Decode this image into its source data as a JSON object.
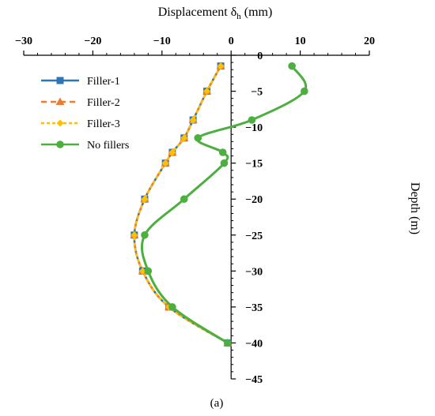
{
  "chart_data": {
    "type": "line",
    "xlabel_main": "Displacement δ",
    "xlabel_sub": "h",
    "xlabel_unit": " (mm)",
    "ylabel": "Depth (m)",
    "caption": "(a)",
    "xlim": [
      -30,
      20
    ],
    "ylim": [
      -45,
      0
    ],
    "xticks": [
      -30,
      -20,
      -10,
      0,
      10,
      20
    ],
    "xtick_labels": [
      "−30",
      "−20",
      "−10",
      "0",
      "10",
      "20"
    ],
    "yticks": [
      0,
      -5,
      -10,
      -15,
      -20,
      -25,
      -30,
      -35,
      -40,
      -45
    ],
    "ytick_labels": [
      "0",
      "−5",
      "−10",
      "−15",
      "−20",
      "−25",
      "−30",
      "−35",
      "−40",
      "−45"
    ],
    "legend_position": "top-left",
    "series": [
      {
        "name": "Filler-1",
        "color": "#2E75B6",
        "marker": "square",
        "dash": "",
        "points": [
          [
            -1.5,
            -1.5
          ],
          [
            -3.5,
            -5
          ],
          [
            -5.5,
            -9
          ],
          [
            -6.8,
            -11.5
          ],
          [
            -8.5,
            -13.5
          ],
          [
            -9.5,
            -15
          ],
          [
            -12.5,
            -20
          ],
          [
            -14.0,
            -25
          ],
          [
            -12.8,
            -30
          ],
          [
            -9.0,
            -35
          ],
          [
            -0.5,
            -40
          ]
        ]
      },
      {
        "name": "Filler-2",
        "color": "#ED7D31",
        "marker": "triangle",
        "dash": "7,5",
        "points": [
          [
            -1.5,
            -1.5
          ],
          [
            -3.5,
            -5
          ],
          [
            -5.5,
            -9
          ],
          [
            -6.8,
            -11.5
          ],
          [
            -8.5,
            -13.5
          ],
          [
            -9.5,
            -15
          ],
          [
            -12.5,
            -20
          ],
          [
            -14.0,
            -25
          ],
          [
            -12.8,
            -30
          ],
          [
            -9.0,
            -35
          ],
          [
            -0.5,
            -40
          ]
        ]
      },
      {
        "name": "Filler-3",
        "color": "#FFC000",
        "marker": "diamond",
        "dash": "4,3",
        "points": [
          [
            -1.5,
            -1.5
          ],
          [
            -3.5,
            -5
          ],
          [
            -5.5,
            -9
          ],
          [
            -6.8,
            -11.5
          ],
          [
            -8.5,
            -13.5
          ],
          [
            -9.5,
            -15
          ],
          [
            -12.5,
            -20
          ],
          [
            -14.0,
            -25
          ],
          [
            -12.8,
            -30
          ],
          [
            -9.0,
            -35
          ],
          [
            -0.5,
            -40
          ]
        ]
      },
      {
        "name": "No fillers",
        "color": "#4CAF3F",
        "marker": "circle",
        "dash": "",
        "points": [
          [
            8.8,
            -1.5
          ],
          [
            10.6,
            -5
          ],
          [
            3.0,
            -9
          ],
          [
            -4.8,
            -11.5
          ],
          [
            -1.2,
            -13.5
          ],
          [
            -1.0,
            -15
          ],
          [
            -6.8,
            -20
          ],
          [
            -12.5,
            -25
          ],
          [
            -12.0,
            -30
          ],
          [
            -8.5,
            -35
          ],
          [
            -0.5,
            -40
          ]
        ]
      }
    ]
  }
}
